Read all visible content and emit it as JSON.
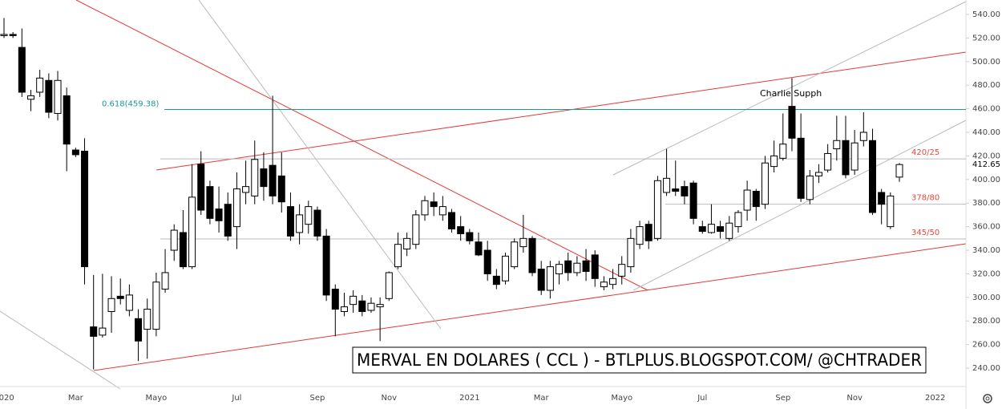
{
  "chart_data": {
    "type": "candlestick",
    "title": "MERVAL EN DOLARES ( CCL ) - BTLPLUS.BLOGSPOT.COM/ @CHTRADER",
    "categories": [
      "2020",
      null,
      null,
      null,
      null,
      null,
      null,
      null,
      "Mar",
      null,
      null,
      null,
      null,
      null,
      null,
      null,
      null,
      "Mayo",
      null,
      null,
      null,
      null,
      null,
      null,
      null,
      null,
      "Jul",
      null,
      null,
      null,
      null,
      null,
      null,
      null,
      null,
      "Sep",
      null,
      null,
      null,
      null,
      null,
      null,
      null,
      "Nov",
      null,
      null,
      null,
      null,
      null,
      null,
      null,
      null,
      "2021",
      null,
      null,
      null,
      null,
      null,
      null,
      null,
      "Mar",
      null,
      null,
      null,
      null,
      null,
      null,
      null,
      null,
      "Mayo",
      null,
      null,
      null,
      null,
      null,
      null,
      null,
      null,
      "Jul",
      null,
      null,
      null,
      null,
      null,
      null,
      null,
      null,
      "Sep",
      null,
      null,
      null,
      null,
      null,
      null,
      null,
      "Nov",
      null,
      null,
      null,
      null,
      null,
      null,
      null,
      null,
      "2022"
    ],
    "open": [
      522,
      523,
      512,
      468,
      474,
      484,
      456,
      471,
      425,
      424,
      275,
      268,
      288,
      301,
      289,
      282,
      273,
      273,
      307,
      340,
      355,
      326,
      413,
      394,
      375,
      379,
      360,
      389,
      386,
      409,
      412,
      403,
      377,
      355,
      362,
      374,
      352,
      307,
      288,
      294,
      297,
      289,
      292,
      299,
      326,
      341,
      345,
      370,
      381,
      370,
      372,
      360,
      355,
      347,
      340,
      318,
      314,
      326,
      343,
      350,
      324,
      306,
      320,
      331,
      321,
      331,
      336,
      309,
      311,
      318,
      326,
      345,
      362,
      350,
      389,
      392,
      394,
      397,
      360,
      355,
      360,
      350,
      360,
      374,
      390,
      379,
      411,
      418,
      462,
      435,
      383,
      403,
      408,
      426,
      433,
      408,
      433,
      433,
      389,
      360,
      402,
      null,
      null,
      null,
      null
    ],
    "high": [
      537,
      525,
      528,
      476,
      493,
      490,
      492,
      478,
      427,
      435,
      319,
      320,
      318,
      316,
      311,
      290,
      299,
      321,
      341,
      362,
      374,
      413,
      424,
      399,
      394,
      389,
      406,
      416,
      433,
      423,
      471,
      423,
      389,
      379,
      382,
      377,
      358,
      311,
      304,
      306,
      302,
      300,
      300,
      322,
      355,
      355,
      374,
      386,
      389,
      386,
      375,
      369,
      358,
      355,
      348,
      324,
      338,
      350,
      370,
      352,
      331,
      331,
      331,
      338,
      335,
      341,
      340,
      318,
      324,
      335,
      358,
      365,
      365,
      403,
      426,
      416,
      399,
      399,
      365,
      379,
      365,
      369,
      374,
      399,
      392,
      420,
      433,
      456,
      486,
      456,
      408,
      413,
      430,
      454,
      454,
      442,
      457,
      443,
      392,
      389,
      414,
      null,
      null,
      null,
      null
    ],
    "low": [
      520,
      520,
      470,
      458,
      470,
      452,
      450,
      407,
      419,
      311,
      239,
      266,
      270,
      294,
      284,
      246,
      248,
      267,
      304,
      331,
      324,
      324,
      370,
      362,
      355,
      348,
      341,
      379,
      379,
      382,
      379,
      372,
      348,
      345,
      354,
      348,
      297,
      267,
      284,
      287,
      284,
      287,
      263,
      297,
      324,
      335,
      341,
      365,
      369,
      365,
      355,
      348,
      345,
      335,
      314,
      307,
      311,
      324,
      338,
      318,
      302,
      299,
      311,
      314,
      318,
      314,
      309,
      306,
      307,
      311,
      321,
      341,
      341,
      348,
      386,
      386,
      379,
      362,
      354,
      354,
      350,
      348,
      355,
      365,
      365,
      375,
      406,
      416,
      424,
      381,
      379,
      397,
      406,
      416,
      401,
      404,
      428,
      370,
      362,
      358,
      398,
      null,
      null,
      null,
      null
    ],
    "close": [
      523,
      522,
      474,
      471,
      486,
      457,
      484,
      430,
      421,
      326,
      267,
      274,
      299,
      299,
      302,
      263,
      290,
      313,
      321,
      357,
      326,
      385,
      374,
      367,
      365,
      352,
      392,
      394,
      417,
      394,
      386,
      381,
      352,
      370,
      377,
      352,
      302,
      290,
      292,
      301,
      288,
      295,
      294,
      321,
      345,
      350,
      370,
      382,
      377,
      377,
      358,
      354,
      348,
      336,
      320,
      311,
      335,
      347,
      350,
      321,
      306,
      326,
      328,
      321,
      329,
      322,
      316,
      313,
      316,
      328,
      350,
      360,
      348,
      399,
      401,
      390,
      386,
      367,
      356,
      362,
      356,
      363,
      372,
      391,
      377,
      414,
      420,
      430,
      435,
      384,
      403,
      406,
      422,
      433,
      404,
      431,
      440,
      372,
      379,
      386,
      412.65,
      null,
      null,
      null,
      null
    ],
    "ylim": [
      224.4,
      552.2
    ],
    "yticks": [
      {
        "value": 240,
        "label": "240.00"
      },
      {
        "value": 260,
        "label": "260.00"
      },
      {
        "value": 280,
        "label": "280.00"
      },
      {
        "value": 300,
        "label": "300.00"
      },
      {
        "value": 320,
        "label": "320.00"
      },
      {
        "value": 340,
        "label": "340.00"
      },
      {
        "value": 360,
        "label": "360.00"
      },
      {
        "value": 380,
        "label": "380.00"
      },
      {
        "value": 400,
        "label": "400.00"
      },
      {
        "value": 420,
        "label": "420.00"
      },
      {
        "value": 440,
        "label": "440.00"
      },
      {
        "value": 460,
        "label": "460.00"
      },
      {
        "value": 480,
        "label": "480.00"
      },
      {
        "value": 500,
        "label": "500.00"
      },
      {
        "value": 520,
        "label": "520.00"
      },
      {
        "value": 540,
        "label": "540.00"
      }
    ],
    "last_price": 412.65,
    "fib_level": {
      "label": "0.618(459.38)",
      "value": 459.38
    },
    "levels": [
      {
        "label": "420/25",
        "value": 417.5
      },
      {
        "label": "378/80",
        "value": 379
      },
      {
        "label": "345/50",
        "value": 349.5
      }
    ],
    "annotation": "Charlie Supph",
    "up_color": "#ffffff",
    "down_color": "#000000",
    "fib_color": "#1b9a8c",
    "level_color": "#e0483c"
  }
}
